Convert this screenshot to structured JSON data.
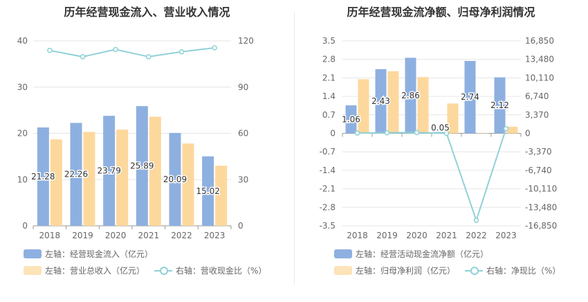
{
  "chart_data": [
    {
      "type": "bar",
      "title": "历年经营现金流入、营业收入情况",
      "categories": [
        "2018",
        "2019",
        "2020",
        "2021",
        "2022",
        "2023"
      ],
      "series": [
        {
          "name": "左轴：经营现金流入（亿元）",
          "axis": "left",
          "kind": "bar",
          "color": "#8eb0e0",
          "values": [
            21.28,
            22.26,
            23.79,
            25.89,
            20.09,
            15.02
          ],
          "labels": [
            "21.28",
            "22.26",
            "23.79",
            "25.89",
            "20.09",
            "15.02"
          ]
        },
        {
          "name": "左轴：营业总收入（亿元）",
          "axis": "left",
          "kind": "bar",
          "color": "#fdd89d",
          "values": [
            18.7,
            20.3,
            20.8,
            23.6,
            17.8,
            13.0
          ]
        },
        {
          "name": "右轴：营收现金比（%）",
          "axis": "right",
          "kind": "line",
          "color": "#8fd1d8",
          "values": [
            113.8,
            109.7,
            114.4,
            109.7,
            112.9,
            115.5
          ]
        }
      ],
      "y_left": {
        "min": 0,
        "max": 40,
        "ticks": [
          "0",
          "10",
          "20",
          "30",
          "40"
        ]
      },
      "y_right": {
        "min": 0,
        "max": 120,
        "ticks": [
          "0",
          "30",
          "60",
          "90",
          "120"
        ]
      },
      "legend": {
        "rows": [
          [
            "左轴：经营现金流入（亿元）"
          ],
          [
            "左轴：营业总收入（亿元）",
            "右轴：营收现金比（%）"
          ]
        ]
      }
    },
    {
      "type": "bar",
      "title": "历年经营现金流净额、归母净利润情况",
      "categories": [
        "2018",
        "2019",
        "2020",
        "2021",
        "2022",
        "2023"
      ],
      "series": [
        {
          "name": "左轴：经营活动现金流净额（亿元）",
          "axis": "left",
          "kind": "bar",
          "color": "#8eb0e0",
          "values": [
            1.06,
            2.43,
            2.86,
            0.05,
            2.74,
            2.12
          ],
          "labels": [
            "1.06",
            "2.43",
            "2.86",
            "0.05",
            "2.74",
            "2.12"
          ]
        },
        {
          "name": "左轴：归母净利润（亿元）",
          "axis": "left",
          "kind": "bar",
          "color": "#fdd89d",
          "values": [
            2.05,
            2.35,
            2.13,
            1.13,
            0.0,
            0.25
          ]
        },
        {
          "name": "右轴：净现比（%）",
          "axis": "right",
          "kind": "line",
          "color": "#8fd1d8",
          "values": [
            51.7,
            103.4,
            134.3,
            4.4,
            -15850,
            848
          ]
        }
      ],
      "y_left": {
        "min": -3.5,
        "max": 3.5,
        "ticks": [
          "-3.5",
          "-2.8",
          "-2.1",
          "-1.4",
          "-0.7",
          "0",
          "0.7",
          "1.4",
          "2.1",
          "2.8",
          "3.5"
        ]
      },
      "y_right": {
        "min": -16850,
        "max": 16850,
        "ticks": [
          "-16,850",
          "-13,480",
          "-10,110",
          "-6,740",
          "-3,370",
          "0",
          "3,370",
          "6,740",
          "10,110",
          "13,480",
          "16,850"
        ]
      },
      "legend": {
        "rows": [
          [
            "左轴：经营活动现金流净额（亿元）"
          ],
          [
            "左轴：归母净利润（亿元）",
            "右轴：净现比（%）"
          ]
        ]
      }
    }
  ]
}
